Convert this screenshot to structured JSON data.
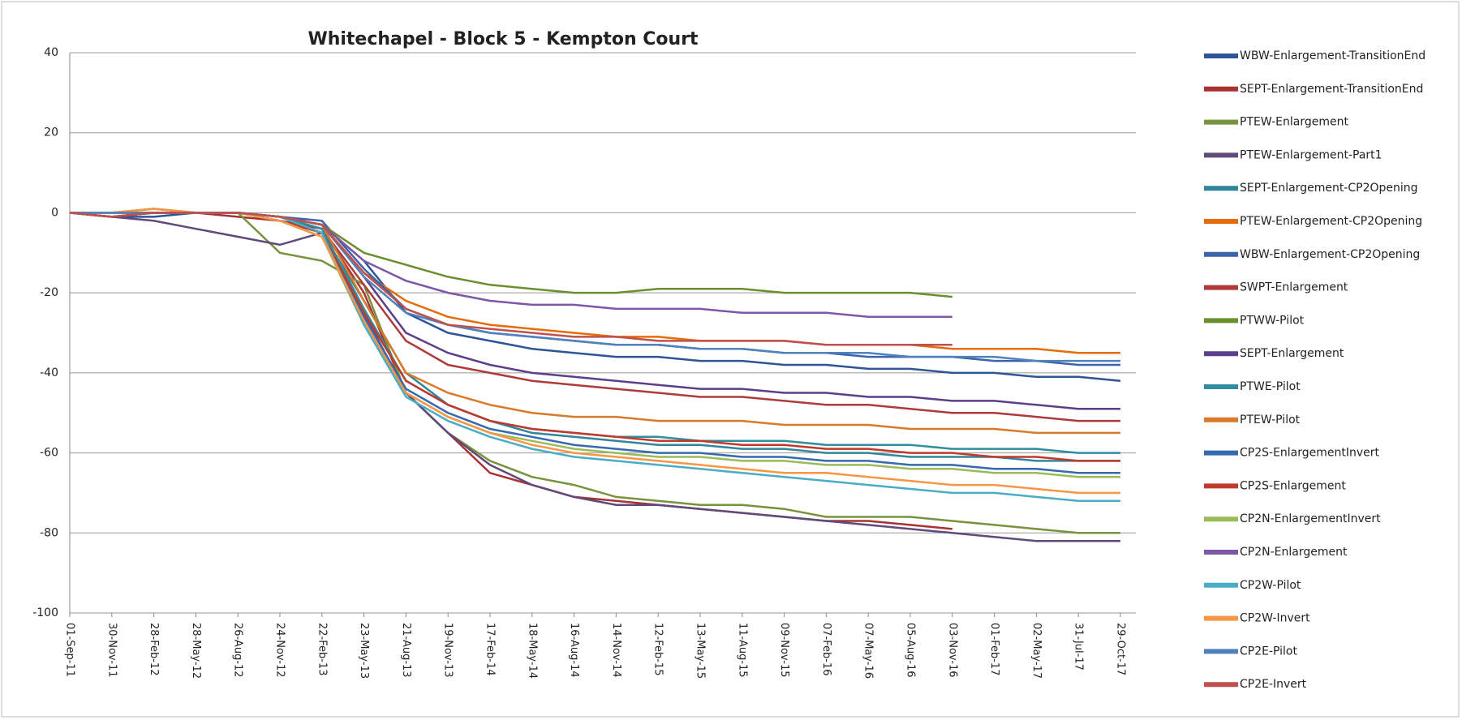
{
  "chart_data": {
    "type": "line",
    "title": "Whitechapel - Block 5 - Kempton Court",
    "categories": [
      "01-Sep-11",
      "30-Nov-11",
      "28-Feb-12",
      "28-May-12",
      "26-Aug-12",
      "24-Nov-12",
      "22-Feb-13",
      "23-May-13",
      "21-Aug-13",
      "19-Nov-13",
      "17-Feb-14",
      "18-May-14",
      "16-Aug-14",
      "14-Nov-14",
      "12-Feb-15",
      "13-May-15",
      "11-Aug-15",
      "09-Nov-15",
      "07-Feb-16",
      "07-May-16",
      "05-Aug-16",
      "03-Nov-16",
      "01-Feb-17",
      "02-May-17",
      "31-Jul-17",
      "29-Oct-17"
    ],
    "ylim": [
      -100,
      40
    ],
    "yticks": [
      -100,
      -80,
      -60,
      -40,
      -20,
      0,
      20,
      40
    ],
    "grid": true,
    "series": [
      {
        "name": "WBW-Enlargement-TransitionEnd",
        "color": "#2e5597",
        "values": [
          0,
          -1,
          -1,
          0,
          0,
          -1,
          -3,
          -12,
          -25,
          -30,
          -32,
          -34,
          -35,
          -36,
          -36,
          -37,
          -37,
          -38,
          -38,
          -39,
          -39,
          -40,
          -40,
          -41,
          -41,
          -42
        ]
      },
      {
        "name": "SEPT-Enlargement-TransitionEnd",
        "color": "#a83232",
        "values": [
          0,
          -1,
          0,
          0,
          -1,
          -2,
          -4,
          -20,
          -45,
          -55,
          -65,
          -68,
          -71,
          -72,
          -73,
          -74,
          -75,
          -76,
          -77,
          -77,
          -78,
          -79,
          null,
          null,
          null,
          null
        ]
      },
      {
        "name": "PTEW-Enlargement",
        "color": "#77933c",
        "values": [
          0,
          0,
          1,
          0,
          0,
          -10,
          -12,
          -18,
          -45,
          -55,
          -62,
          -66,
          -68,
          -71,
          -72,
          -73,
          -73,
          -74,
          -76,
          -76,
          -76,
          -77,
          -78,
          -79,
          -80,
          -80
        ]
      },
      {
        "name": "PTEW-Enlargement-Part1",
        "color": "#604a7b",
        "values": [
          0,
          -1,
          -2,
          -4,
          -6,
          -8,
          -5,
          -25,
          -45,
          -55,
          -63,
          -68,
          -71,
          -73,
          -73,
          -74,
          -75,
          -76,
          -77,
          -78,
          -79,
          -80,
          -81,
          -82,
          -82,
          -82
        ]
      },
      {
        "name": "SEPT-Enlargement-CP2Opening",
        "color": "#31859c",
        "values": [
          0,
          0,
          0,
          0,
          0,
          -2,
          -5,
          -22,
          -40,
          -48,
          -52,
          -55,
          -56,
          -57,
          -58,
          -58,
          -59,
          -59,
          -60,
          -60,
          -61,
          -61,
          -61,
          -62,
          -62,
          -62
        ]
      },
      {
        "name": "PTEW-Enlargement-CP2Opening",
        "color": "#e46c0a",
        "values": [
          0,
          0,
          1,
          0,
          0,
          -1,
          -3,
          -15,
          -22,
          -26,
          -28,
          -29,
          -30,
          -31,
          -31,
          -32,
          -32,
          -32,
          -33,
          -33,
          -33,
          -34,
          -34,
          -34,
          -35,
          -35
        ]
      },
      {
        "name": "WBW-Enlargement-CP2Opening",
        "color": "#3b64ad",
        "values": [
          0,
          0,
          0,
          0,
          0,
          -1,
          -2,
          -14,
          -24,
          -28,
          -30,
          -31,
          -32,
          -33,
          -33,
          -34,
          -34,
          -35,
          -35,
          -36,
          -36,
          -36,
          -37,
          -37,
          -38,
          -38
        ]
      },
      {
        "name": "SWPT-Enlargement",
        "color": "#b03a3a",
        "values": [
          0,
          -1,
          0,
          0,
          0,
          -1,
          -4,
          -18,
          -32,
          -38,
          -40,
          -42,
          -43,
          -44,
          -45,
          -46,
          -46,
          -47,
          -48,
          -48,
          -49,
          -50,
          -50,
          -51,
          -52,
          -52
        ]
      },
      {
        "name": "PTWW-Pilot",
        "color": "#6a8f2f",
        "values": [
          0,
          0,
          0,
          0,
          0,
          -1,
          -3,
          -10,
          -13,
          -16,
          -18,
          -19,
          -20,
          -20,
          -19,
          -19,
          -19,
          -20,
          -20,
          -20,
          -20,
          -21,
          null,
          null,
          null,
          null
        ]
      },
      {
        "name": "SEPT-Enlargement",
        "color": "#5b3f8a",
        "values": [
          0,
          -1,
          0,
          0,
          0,
          -1,
          -3,
          -16,
          -30,
          -35,
          -38,
          -40,
          -41,
          -42,
          -43,
          -44,
          -44,
          -45,
          -45,
          -46,
          -46,
          -47,
          -47,
          -48,
          -49,
          -49
        ]
      },
      {
        "name": "PTWE-Pilot",
        "color": "#2f8fa0",
        "values": [
          0,
          0,
          0,
          0,
          0,
          -1,
          -4,
          -24,
          -42,
          -48,
          -52,
          -54,
          -55,
          -56,
          -56,
          -57,
          -57,
          -57,
          -58,
          -58,
          -58,
          -59,
          -59,
          -59,
          -60,
          -60
        ]
      },
      {
        "name": "PTEW-Pilot",
        "color": "#d97a2a",
        "values": [
          0,
          0,
          1,
          0,
          0,
          -1,
          -3,
          -22,
          -40,
          -45,
          -48,
          -50,
          -51,
          -51,
          -52,
          -52,
          -52,
          -53,
          -53,
          -53,
          -54,
          -54,
          -54,
          -55,
          -55,
          -55
        ]
      },
      {
        "name": "CP2S-EnlargementInvert",
        "color": "#3569b0",
        "values": [
          0,
          0,
          0,
          0,
          0,
          -1,
          -5,
          -26,
          -44,
          -50,
          -54,
          -56,
          -58,
          -59,
          -60,
          -60,
          -61,
          -61,
          -62,
          -62,
          -63,
          -63,
          -64,
          -64,
          -65,
          -65
        ]
      },
      {
        "name": "CP2S-Enlargement",
        "color": "#c0392b",
        "values": [
          0,
          -1,
          0,
          0,
          0,
          -2,
          -5,
          -25,
          -42,
          -48,
          -52,
          -54,
          -55,
          -56,
          -57,
          -57,
          -58,
          -58,
          -59,
          -59,
          -60,
          -60,
          -61,
          -61,
          -62,
          -62
        ]
      },
      {
        "name": "CP2N-EnlargementInvert",
        "color": "#9bbb59",
        "values": [
          0,
          0,
          1,
          0,
          0,
          -2,
          -6,
          -28,
          -45,
          -51,
          -55,
          -57,
          -59,
          -60,
          -61,
          -61,
          -62,
          -62,
          -63,
          -63,
          -64,
          -64,
          -65,
          -65,
          -66,
          -66
        ]
      },
      {
        "name": "CP2N-Enlargement",
        "color": "#7e57a8",
        "values": [
          0,
          0,
          0,
          0,
          0,
          -1,
          -3,
          -12,
          -17,
          -20,
          -22,
          -23,
          -23,
          -24,
          -24,
          -24,
          -25,
          -25,
          -25,
          -26,
          -26,
          -26,
          null,
          null,
          null,
          null
        ]
      },
      {
        "name": "CP2W-Pilot",
        "color": "#4bacc6",
        "values": [
          0,
          0,
          0,
          0,
          0,
          -1,
          -5,
          -28,
          -46,
          -52,
          -56,
          -59,
          -61,
          -62,
          -63,
          -64,
          -65,
          -66,
          -67,
          -68,
          -69,
          -70,
          -70,
          -71,
          -72,
          -72
        ]
      },
      {
        "name": "CP2W-Invert",
        "color": "#f79646",
        "values": [
          0,
          0,
          1,
          0,
          0,
          -2,
          -6,
          -27,
          -45,
          -51,
          -55,
          -58,
          -60,
          -61,
          -62,
          -63,
          -64,
          -65,
          -65,
          -66,
          -67,
          -68,
          -68,
          -69,
          -70,
          -70
        ]
      },
      {
        "name": "CP2E-Pilot",
        "color": "#4f81bd",
        "values": [
          0,
          0,
          0,
          0,
          0,
          -1,
          -3,
          -16,
          -25,
          -28,
          -30,
          -31,
          -32,
          -33,
          -33,
          -34,
          -34,
          -35,
          -35,
          -35,
          -36,
          -36,
          -36,
          -37,
          -37,
          -37
        ]
      },
      {
        "name": "CP2E-Invert",
        "color": "#c0504d",
        "values": [
          0,
          -1,
          0,
          0,
          0,
          -1,
          -3,
          -15,
          -24,
          -28,
          -29,
          -30,
          -31,
          -31,
          -32,
          -32,
          -32,
          -32,
          -33,
          -33,
          -33,
          -33,
          null,
          null,
          null,
          null
        ]
      }
    ]
  }
}
